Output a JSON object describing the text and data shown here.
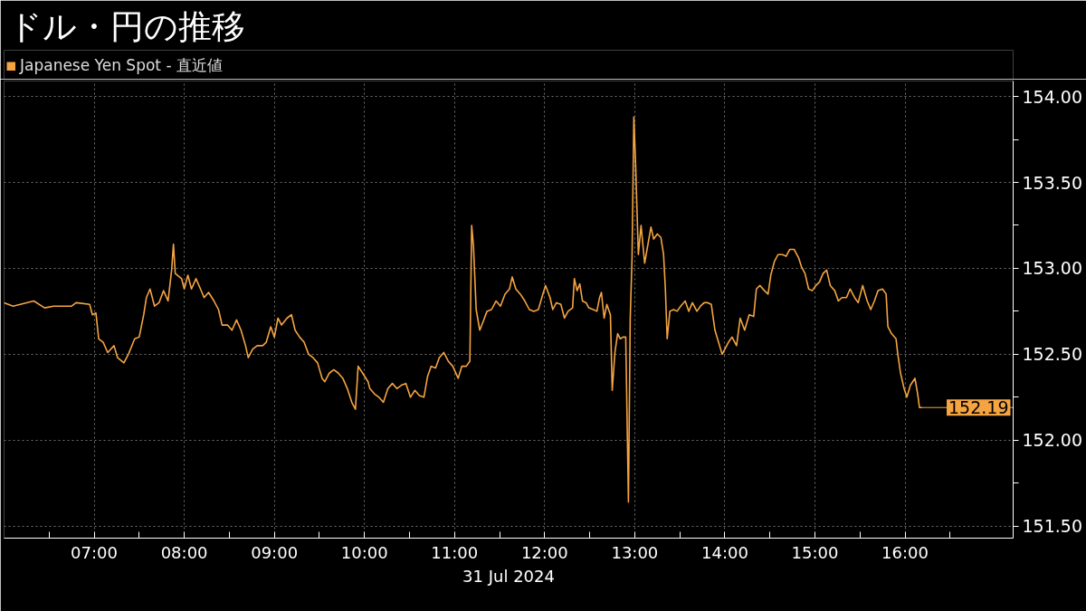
{
  "chart_data": {
    "type": "line",
    "title": "ドル・円の推移",
    "xlabel": "31 Jul 2024",
    "x": [
      6.0,
      6.1,
      6.33,
      6.45,
      6.55,
      6.75,
      6.8,
      6.95,
      6.98,
      7.02,
      7.05,
      7.1,
      7.15,
      7.22,
      7.26,
      7.33,
      7.38,
      7.45,
      7.5,
      7.55,
      7.58,
      7.62,
      7.67,
      7.72,
      7.77,
      7.82,
      7.86,
      7.88,
      7.9,
      7.97,
      8.0,
      8.04,
      8.08,
      8.13,
      8.18,
      8.22,
      8.27,
      8.33,
      8.38,
      8.42,
      8.48,
      8.53,
      8.58,
      8.63,
      8.68,
      8.71,
      8.76,
      8.81,
      8.87,
      8.91,
      8.96,
      9.0,
      9.04,
      9.08,
      9.14,
      9.19,
      9.23,
      9.28,
      9.33,
      9.38,
      9.43,
      9.48,
      9.53,
      9.56,
      9.61,
      9.66,
      9.71,
      9.76,
      9.81,
      9.86,
      9.9,
      9.93,
      9.98,
      10.04,
      10.06,
      10.11,
      10.16,
      10.21,
      10.26,
      10.31,
      10.36,
      10.41,
      10.46,
      10.51,
      10.56,
      10.61,
      10.66,
      10.7,
      10.74,
      10.79,
      10.83,
      10.88,
      10.93,
      10.98,
      11.04,
      11.08,
      11.13,
      11.17,
      11.19,
      11.21,
      11.24,
      11.28,
      11.31,
      11.36,
      11.41,
      11.46,
      11.51,
      11.56,
      11.61,
      11.64,
      11.68,
      11.73,
      11.78,
      11.83,
      11.88,
      11.93,
      11.98,
      12.01,
      12.06,
      12.09,
      12.13,
      12.18,
      12.22,
      12.26,
      12.31,
      12.33,
      12.36,
      12.39,
      12.42,
      12.46,
      12.49,
      12.54,
      12.58,
      12.61,
      12.63,
      12.66,
      12.69,
      12.73,
      12.75,
      12.78,
      12.81,
      12.84,
      12.87,
      12.9,
      12.93,
      12.95,
      12.97,
      12.99,
      13.01,
      13.04,
      13.07,
      13.11,
      13.15,
      13.18,
      13.21,
      13.25,
      13.29,
      13.32,
      13.34,
      13.36,
      13.39,
      13.43,
      13.47,
      13.51,
      13.56,
      13.6,
      13.64,
      13.69,
      13.73,
      13.77,
      13.81,
      13.85,
      13.89,
      13.93,
      13.97,
      14.04,
      14.08,
      14.13,
      14.17,
      14.22,
      14.27,
      14.32,
      14.35,
      14.39,
      14.44,
      14.48,
      14.51,
      14.55,
      14.59,
      14.64,
      14.68,
      14.72,
      14.77,
      14.82,
      14.85,
      14.89,
      14.93,
      14.97,
      15.01,
      15.05,
      15.09,
      15.13,
      15.17,
      15.22,
      15.26,
      15.3,
      15.35,
      15.39,
      15.44,
      15.48,
      15.53,
      15.58,
      15.62,
      15.66,
      15.7,
      15.75,
      15.79,
      15.81,
      15.85,
      15.9,
      15.92,
      15.95,
      15.99,
      16.02,
      16.06,
      16.11,
      16.14,
      16.16,
      16.19
    ],
    "series": [
      {
        "name": "Japanese Yen Spot - 直近値",
        "color": "#f5a442",
        "values": [
          152.8,
          152.78,
          152.81,
          152.77,
          152.78,
          152.78,
          152.8,
          152.79,
          152.73,
          152.74,
          152.59,
          152.57,
          152.51,
          152.55,
          152.48,
          152.45,
          152.5,
          152.59,
          152.6,
          152.73,
          152.83,
          152.88,
          152.78,
          152.8,
          152.87,
          152.81,
          152.99,
          153.14,
          152.97,
          152.94,
          152.88,
          152.96,
          152.88,
          152.94,
          152.88,
          152.83,
          152.86,
          152.81,
          152.76,
          152.67,
          152.67,
          152.64,
          152.7,
          152.64,
          152.55,
          152.48,
          152.53,
          152.55,
          152.55,
          152.57,
          152.66,
          152.6,
          152.71,
          152.67,
          152.71,
          152.73,
          152.64,
          152.6,
          152.57,
          152.5,
          152.48,
          152.45,
          152.36,
          152.34,
          152.39,
          152.41,
          152.39,
          152.36,
          152.3,
          152.22,
          152.18,
          152.43,
          152.39,
          152.34,
          152.3,
          152.27,
          152.25,
          152.22,
          152.3,
          152.33,
          152.3,
          152.32,
          152.33,
          152.25,
          152.29,
          152.26,
          152.25,
          152.37,
          152.43,
          152.42,
          152.48,
          152.51,
          152.46,
          152.43,
          152.36,
          152.43,
          152.43,
          152.46,
          153.25,
          153.13,
          152.76,
          152.64,
          152.68,
          152.75,
          152.76,
          152.81,
          152.78,
          152.85,
          152.88,
          152.95,
          152.88,
          152.85,
          152.81,
          152.76,
          152.75,
          152.76,
          152.85,
          152.9,
          152.83,
          152.76,
          152.8,
          152.79,
          152.71,
          152.75,
          152.77,
          152.94,
          152.87,
          152.91,
          152.81,
          152.8,
          152.77,
          152.76,
          152.75,
          152.83,
          152.86,
          152.71,
          152.79,
          152.73,
          152.29,
          152.51,
          152.62,
          152.59,
          152.6,
          152.6,
          151.64,
          152.71,
          153.06,
          153.88,
          153.6,
          153.08,
          153.25,
          153.03,
          153.15,
          153.24,
          153.17,
          153.2,
          153.18,
          153.08,
          152.88,
          152.59,
          152.75,
          152.76,
          152.75,
          152.78,
          152.81,
          152.75,
          152.8,
          152.75,
          152.78,
          152.8,
          152.8,
          152.79,
          152.64,
          152.57,
          152.5,
          152.57,
          152.6,
          152.55,
          152.71,
          152.64,
          152.73,
          152.72,
          152.88,
          152.9,
          152.87,
          152.85,
          152.96,
          153.04,
          153.08,
          153.08,
          153.07,
          153.11,
          153.11,
          153.06,
          153.01,
          152.97,
          152.88,
          152.87,
          152.9,
          152.92,
          152.97,
          152.99,
          152.9,
          152.87,
          152.81,
          152.83,
          152.83,
          152.88,
          152.83,
          152.8,
          152.9,
          152.81,
          152.76,
          152.81,
          152.87,
          152.88,
          152.85,
          152.66,
          152.62,
          152.59,
          152.5,
          152.39,
          152.3,
          152.25,
          152.32,
          152.36,
          152.27,
          152.19,
          152.19
        ]
      }
    ],
    "xlim": [
      6.0,
      17.2
    ],
    "xticks": [
      {
        "value": 6.5,
        "label": null
      },
      {
        "value": 7,
        "label": "07:00"
      },
      {
        "value": 7.5,
        "label": null
      },
      {
        "value": 8,
        "label": "08:00"
      },
      {
        "value": 8.5,
        "label": null
      },
      {
        "value": 9,
        "label": "09:00"
      },
      {
        "value": 9.5,
        "label": null
      },
      {
        "value": 10,
        "label": "10:00"
      },
      {
        "value": 10.5,
        "label": null
      },
      {
        "value": 11,
        "label": "11:00"
      },
      {
        "value": 11.5,
        "label": null
      },
      {
        "value": 12,
        "label": "12:00"
      },
      {
        "value": 12.5,
        "label": null
      },
      {
        "value": 13,
        "label": "13:00"
      },
      {
        "value": 13.5,
        "label": null
      },
      {
        "value": 14,
        "label": "14:00"
      },
      {
        "value": 14.5,
        "label": null
      },
      {
        "value": 15,
        "label": "15:00"
      },
      {
        "value": 15.5,
        "label": null
      },
      {
        "value": 16,
        "label": "16:00"
      },
      {
        "value": 16.5,
        "label": null
      }
    ],
    "ylim": [
      151.43,
      154.09
    ],
    "yticks": [
      {
        "value": 151.5,
        "label": "151.50"
      },
      {
        "value": 151.75,
        "label": null
      },
      {
        "value": 152,
        "label": "152.00"
      },
      {
        "value": 152.25,
        "label": null
      },
      {
        "value": 152.5,
        "label": "152.50"
      },
      {
        "value": 152.75,
        "label": null
      },
      {
        "value": 153,
        "label": "153.00"
      },
      {
        "value": 153.25,
        "label": null
      },
      {
        "value": 153.5,
        "label": "153.50"
      },
      {
        "value": 153.75,
        "label": null
      },
      {
        "value": 154,
        "label": "154.00"
      }
    ],
    "ref_lines": [
      {
        "axis": "y",
        "value": 152.19,
        "label": "152.19",
        "color": "#f5a442"
      }
    ],
    "grid": true,
    "legend": "top left"
  }
}
